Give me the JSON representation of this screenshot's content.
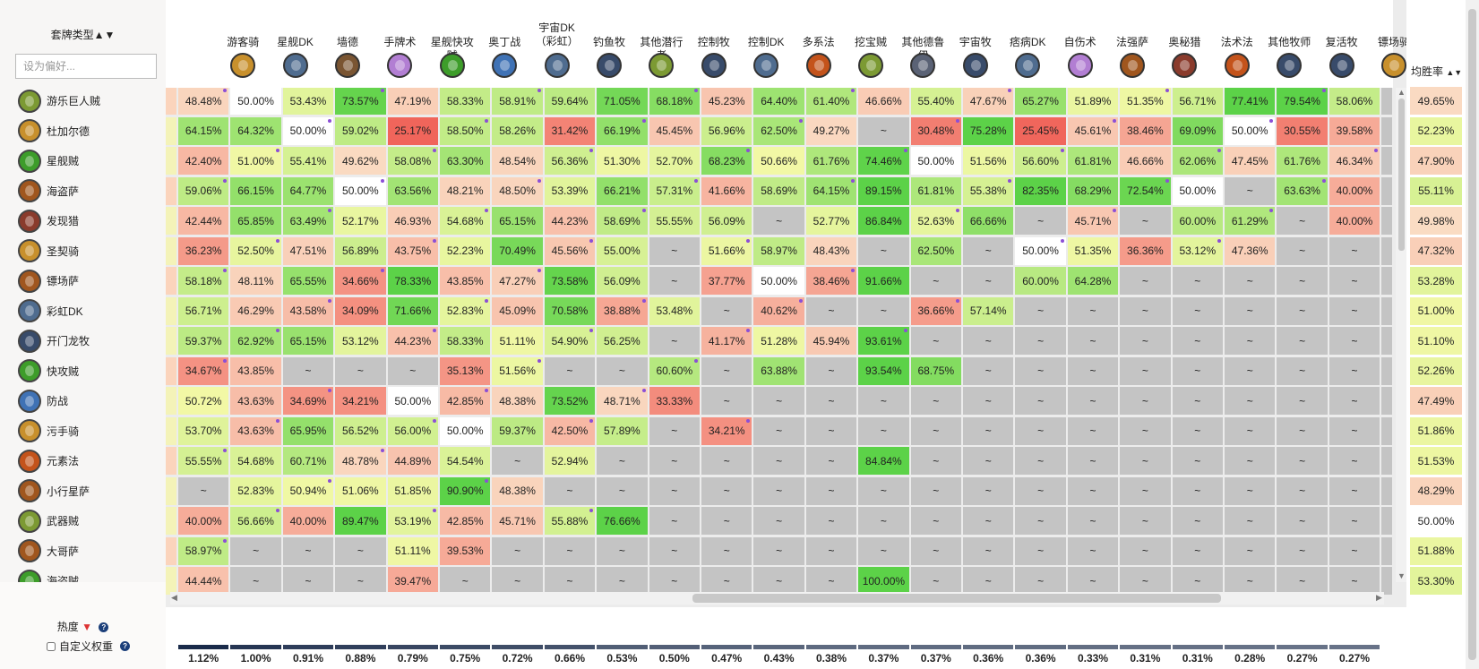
{
  "sidebar": {
    "header": "套牌类型▲▼",
    "filter_placeholder": "设为偏好...",
    "heat_label": "热度",
    "heat_arrow": "▼",
    "custom_label": "自定义权重",
    "help": "?"
  },
  "avg_header": "均胜率",
  "sort_arrows": "▲▼",
  "colors": {
    "dot": "#8c4fd6",
    "pop_bar": "#1a2b4a"
  },
  "columns": [
    {
      "name": "游客骑",
      "icon": "paladin-crest-icon",
      "color": "#c8902c"
    },
    {
      "name": "星舰DK",
      "icon": "death-knight-icon",
      "color": "#4f6c8f"
    },
    {
      "name": "墙德",
      "icon": "druid-claw-icon",
      "color": "#7a5532"
    },
    {
      "name": "手牌术",
      "icon": "warlock-spell-icon",
      "color": "#b27ed3"
    },
    {
      "name": "星舰快攻贼",
      "icon": "rogue-green-icon",
      "color": "#3d9d2a"
    },
    {
      "name": "奥丁战",
      "icon": "warrior-blade-icon",
      "color": "#3f72b5"
    },
    {
      "name": "宇宙DK\n（彩虹）",
      "icon": "death-knight-icon",
      "color": "#4f6c8f"
    },
    {
      "name": "钓鱼牧",
      "icon": "priest-book-icon",
      "color": "#384b6a"
    },
    {
      "name": "其他潜行者",
      "icon": "rogue-icon",
      "color": "#7c9a33"
    },
    {
      "name": "控制牧",
      "icon": "priest-book-icon",
      "color": "#384b6a"
    },
    {
      "name": "控制DK",
      "icon": "death-knight-icon",
      "color": "#4f6c8f"
    },
    {
      "name": "多系法",
      "icon": "mage-fire-icon",
      "color": "#c4531b"
    },
    {
      "name": "挖宝贼",
      "icon": "rogue-icon",
      "color": "#7c9a33"
    },
    {
      "name": "其他德鲁伊",
      "icon": "druid-claw-icon",
      "color": "#5a6275"
    },
    {
      "name": "宇宙牧",
      "icon": "priest-book-icon",
      "color": "#384b6a"
    },
    {
      "name": "痞病DK",
      "icon": "death-knight-icon",
      "color": "#4f6c8f"
    },
    {
      "name": "自伤术",
      "icon": "warlock-spell-icon",
      "color": "#b27ed3"
    },
    {
      "name": "法强萨",
      "icon": "shaman-totem-icon",
      "color": "#a0561e"
    },
    {
      "name": "奥秘猎",
      "icon": "hunter-bow-icon",
      "color": "#8a3b2c"
    },
    {
      "name": "法术法",
      "icon": "mage-fire-icon",
      "color": "#c4531b"
    },
    {
      "name": "其他牧师",
      "icon": "priest-book-icon",
      "color": "#384b6a"
    },
    {
      "name": "复活牧",
      "icon": "priest-book-icon",
      "color": "#384b6a"
    },
    {
      "name": "镖场骑",
      "icon": "paladin-crest-icon",
      "color": "#c8902c"
    }
  ],
  "rows": [
    {
      "name": "游乐巨人贼",
      "icon": "rogue-icon",
      "color": "#7c9a33",
      "avg": "49.65%",
      "cells": [
        "48.48%",
        "50.00%",
        "53.43%",
        "73.57%",
        "47.19%",
        "58.33%",
        "58.91%",
        "59.64%",
        "71.05%",
        "68.18%",
        "45.23%",
        "64.40%",
        "61.40%",
        "46.66%",
        "55.40%",
        "47.67%",
        "65.27%",
        "51.89%",
        "51.35%",
        "56.71%",
        "77.41%",
        "79.54%",
        "58.06%"
      ]
    },
    {
      "name": "杜加尔德",
      "icon": "paladin-crest-icon",
      "color": "#c8902c",
      "avg": "52.23%",
      "cells": [
        "64.15%",
        "64.32%",
        "50.00%",
        "59.02%",
        "25.17%",
        "58.50%",
        "58.26%",
        "31.42%",
        "66.19%",
        "45.45%",
        "56.96%",
        "62.50%",
        "49.27%",
        "~",
        "30.48%",
        "75.28%",
        "25.45%",
        "45.61%",
        "38.46%",
        "69.09%",
        "50.00%",
        "30.55%",
        "39.58%"
      ]
    },
    {
      "name": "星舰贼",
      "icon": "rogue-green-icon",
      "color": "#3d9d2a",
      "avg": "47.90%",
      "cells": [
        "42.40%",
        "51.00%",
        "55.41%",
        "49.62%",
        "58.08%",
        "63.30%",
        "48.54%",
        "56.36%",
        "51.30%",
        "52.70%",
        "68.23%",
        "50.66%",
        "61.76%",
        "74.46%",
        "50.00%",
        "51.56%",
        "56.60%",
        "61.81%",
        "46.66%",
        "62.06%",
        "47.45%",
        "61.76%",
        "46.34%"
      ]
    },
    {
      "name": "海盗萨",
      "icon": "shaman-totem-icon",
      "color": "#a0561e",
      "avg": "55.11%",
      "cells": [
        "59.06%",
        "66.15%",
        "64.77%",
        "50.00%",
        "63.56%",
        "48.21%",
        "48.50%",
        "53.39%",
        "66.21%",
        "57.31%",
        "41.66%",
        "58.69%",
        "64.15%",
        "89.15%",
        "61.81%",
        "55.38%",
        "82.35%",
        "68.29%",
        "72.54%",
        "50.00%",
        "~",
        "63.63%",
        "40.00%"
      ]
    },
    {
      "name": "发现猎",
      "icon": "hunter-bow-icon",
      "color": "#8a3b2c",
      "avg": "49.98%",
      "cells": [
        "42.44%",
        "65.85%",
        "63.49%",
        "52.17%",
        "46.93%",
        "54.68%",
        "65.15%",
        "44.23%",
        "58.69%",
        "55.55%",
        "56.09%",
        "~",
        "52.77%",
        "86.84%",
        "52.63%",
        "66.66%",
        "~",
        "45.71%",
        "~",
        "60.00%",
        "61.29%",
        "~",
        "40.00%"
      ]
    },
    {
      "name": "圣契骑",
      "icon": "paladin-crest-icon",
      "color": "#c8902c",
      "avg": "47.32%",
      "cells": [
        "36.23%",
        "52.50%",
        "47.51%",
        "56.89%",
        "43.75%",
        "52.23%",
        "70.49%",
        "45.56%",
        "55.00%",
        "~",
        "51.66%",
        "58.97%",
        "48.43%",
        "~",
        "62.50%",
        "~",
        "50.00%",
        "51.35%",
        "36.36%",
        "53.12%",
        "47.36%",
        "~",
        "~"
      ]
    },
    {
      "name": "镖场萨",
      "icon": "shaman-totem-icon",
      "color": "#a0561e",
      "avg": "53.28%",
      "cells": [
        "58.18%",
        "48.11%",
        "65.55%",
        "34.66%",
        "78.33%",
        "43.85%",
        "47.27%",
        "73.58%",
        "56.09%",
        "~",
        "37.77%",
        "50.00%",
        "38.46%",
        "91.66%",
        "~",
        "~",
        "60.00%",
        "64.28%",
        "~",
        "~",
        "~",
        "~",
        "~"
      ]
    },
    {
      "name": "彩虹DK",
      "icon": "death-knight-icon",
      "color": "#4f6c8f",
      "avg": "51.00%",
      "cells": [
        "56.71%",
        "46.29%",
        "43.58%",
        "34.09%",
        "71.66%",
        "52.83%",
        "45.09%",
        "70.58%",
        "38.88%",
        "53.48%",
        "~",
        "40.62%",
        "~",
        "~",
        "36.66%",
        "57.14%",
        "~",
        "~",
        "~",
        "~",
        "~",
        "~",
        "~"
      ]
    },
    {
      "name": "开门龙牧",
      "icon": "priest-book-icon",
      "color": "#384b6a",
      "avg": "51.10%",
      "cells": [
        "59.37%",
        "62.92%",
        "65.15%",
        "53.12%",
        "44.23%",
        "58.33%",
        "51.11%",
        "54.90%",
        "56.25%",
        "~",
        "41.17%",
        "51.28%",
        "45.94%",
        "93.61%",
        "~",
        "~",
        "~",
        "~",
        "~",
        "~",
        "~",
        "~",
        "~"
      ]
    },
    {
      "name": "快攻贼",
      "icon": "rogue-green-icon",
      "color": "#3d9d2a",
      "avg": "52.26%",
      "cells": [
        "34.67%",
        "43.85%",
        "~",
        "~",
        "~",
        "35.13%",
        "51.56%",
        "~",
        "~",
        "60.60%",
        "~",
        "63.88%",
        "~",
        "93.54%",
        "68.75%",
        "~",
        "~",
        "~",
        "~",
        "~",
        "~",
        "~",
        "~"
      ]
    },
    {
      "name": "防战",
      "icon": "warrior-blade-icon",
      "color": "#3f72b5",
      "avg": "47.49%",
      "cells": [
        "50.72%",
        "43.63%",
        "34.69%",
        "34.21%",
        "50.00%",
        "42.85%",
        "48.38%",
        "73.52%",
        "48.71%",
        "33.33%",
        "~",
        "~",
        "~",
        "~",
        "~",
        "~",
        "~",
        "~",
        "~",
        "~",
        "~",
        "~",
        "~"
      ]
    },
    {
      "name": "污手骑",
      "icon": "paladin-crest-icon",
      "color": "#c8902c",
      "avg": "51.86%",
      "cells": [
        "53.70%",
        "43.63%",
        "65.95%",
        "56.52%",
        "56.00%",
        "50.00%",
        "59.37%",
        "42.50%",
        "57.89%",
        "~",
        "34.21%",
        "~",
        "~",
        "~",
        "~",
        "~",
        "~",
        "~",
        "~",
        "~",
        "~",
        "~",
        "~"
      ]
    },
    {
      "name": "元素法",
      "icon": "mage-fire-icon",
      "color": "#c4531b",
      "avg": "51.53%",
      "cells": [
        "55.55%",
        "54.68%",
        "60.71%",
        "48.78%",
        "44.89%",
        "54.54%",
        "~",
        "52.94%",
        "~",
        "~",
        "~",
        "~",
        "~",
        "84.84%",
        "~",
        "~",
        "~",
        "~",
        "~",
        "~",
        "~",
        "~",
        "~"
      ]
    },
    {
      "name": "小行星萨",
      "icon": "shaman-totem-icon",
      "color": "#a0561e",
      "avg": "48.29%",
      "cells": [
        "~",
        "52.83%",
        "50.94%",
        "51.06%",
        "51.85%",
        "90.90%",
        "48.38%",
        "~",
        "~",
        "~",
        "~",
        "~",
        "~",
        "~",
        "~",
        "~",
        "~",
        "~",
        "~",
        "~",
        "~",
        "~",
        "~"
      ]
    },
    {
      "name": "武器贼",
      "icon": "rogue-icon",
      "color": "#7c9a33",
      "avg": "50.00%",
      "cells": [
        "40.00%",
        "56.66%",
        "40.00%",
        "89.47%",
        "53.19%",
        "42.85%",
        "45.71%",
        "55.88%",
        "76.66%",
        "~",
        "~",
        "~",
        "~",
        "~",
        "~",
        "~",
        "~",
        "~",
        "~",
        "~",
        "~",
        "~",
        "~"
      ]
    },
    {
      "name": "大哥萨",
      "icon": "shaman-totem-icon",
      "color": "#a0561e",
      "avg": "51.88%",
      "cells": [
        "58.97%",
        "~",
        "~",
        "~",
        "51.11%",
        "39.53%",
        "~",
        "~",
        "~",
        "~",
        "~",
        "~",
        "~",
        "~",
        "~",
        "~",
        "~",
        "~",
        "~",
        "~",
        "~",
        "~",
        "~"
      ]
    },
    {
      "name": "海盗贼",
      "icon": "rogue-green-icon",
      "color": "#3d9d2a",
      "avg": "53.30%",
      "cells": [
        "44.44%",
        "~",
        "~",
        "~",
        "39.47%",
        "~",
        "~",
        "~",
        "~",
        "~",
        "~",
        "~",
        "~",
        "100.00%",
        "~",
        "~",
        "~",
        "~",
        "~",
        "~",
        "~",
        "~",
        "~"
      ]
    }
  ],
  "popularity": [
    "1.12%",
    "1.00%",
    "0.91%",
    "0.88%",
    "0.79%",
    "0.75%",
    "0.72%",
    "0.66%",
    "0.53%",
    "0.50%",
    "0.47%",
    "0.43%",
    "0.38%",
    "0.37%",
    "0.37%",
    "0.36%",
    "0.36%",
    "0.33%",
    "0.31%",
    "0.31%",
    "0.28%",
    "0.27%",
    "0.27%"
  ],
  "popularity_fraction": [
    1.0,
    0.89,
    0.81,
    0.79,
    0.71,
    0.67,
    0.64,
    0.59,
    0.47,
    0.45,
    0.42,
    0.38,
    0.34,
    0.33,
    0.33,
    0.32,
    0.32,
    0.29,
    0.28,
    0.28,
    0.25,
    0.24,
    0.24
  ]
}
